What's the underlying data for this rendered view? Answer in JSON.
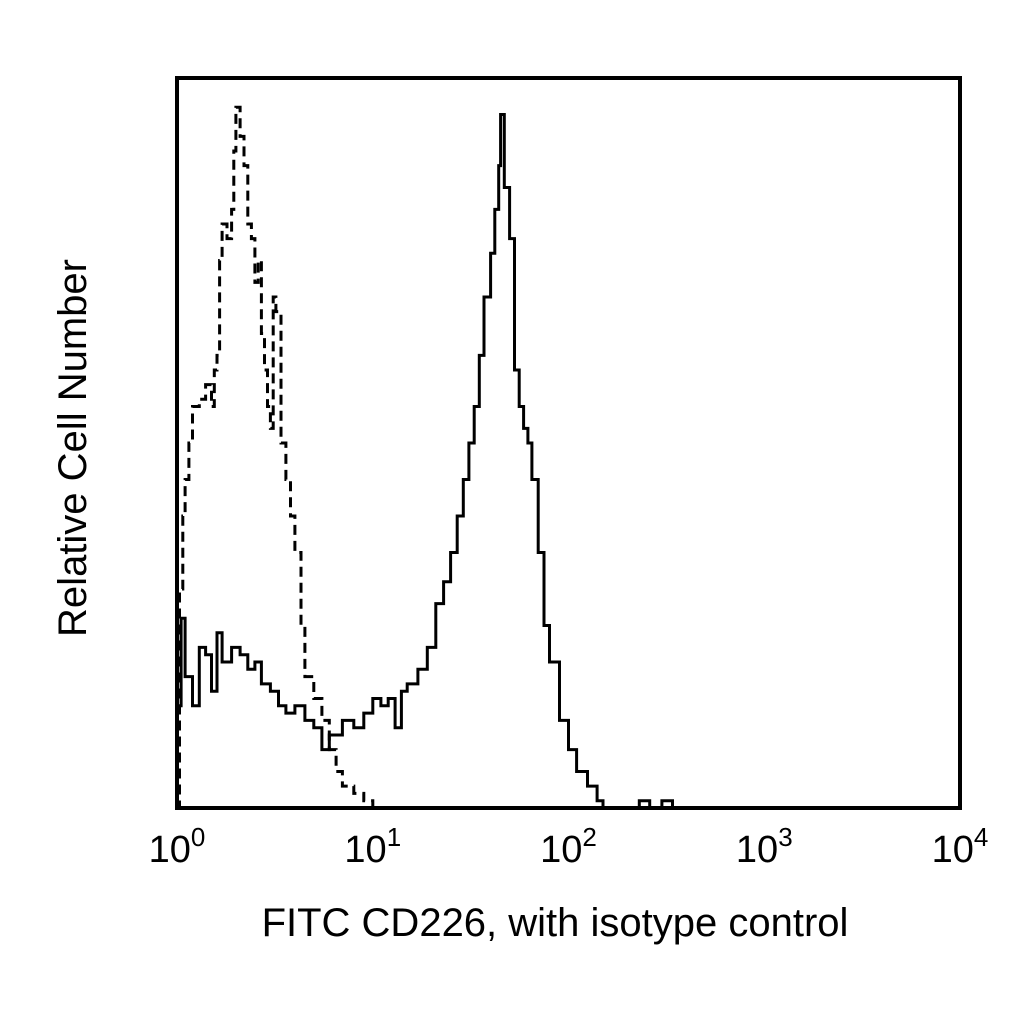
{
  "chart_data": {
    "type": "line",
    "xlabel": "FITC CD226, with isotype control",
    "ylabel": "Relative Cell Number",
    "x_scale": "log",
    "xlim": [
      1,
      10000
    ],
    "ylim": [
      0,
      100
    ],
    "y_tick_labels": false,
    "grid": false,
    "legend": "none",
    "x_ticks": [
      {
        "value": 1,
        "base": "10",
        "exp": "0"
      },
      {
        "value": 10,
        "base": "10",
        "exp": "1"
      },
      {
        "value": 100,
        "base": "10",
        "exp": "2"
      },
      {
        "value": 1000,
        "base": "10",
        "exp": "3"
      },
      {
        "value": 10000,
        "base": "10",
        "exp": "4"
      }
    ],
    "series": [
      {
        "style": "dashed",
        "color": "#000000",
        "points": [
          [
            1.0,
            0
          ],
          [
            1.03,
            30
          ],
          [
            1.07,
            40
          ],
          [
            1.1,
            45
          ],
          [
            1.15,
            50
          ],
          [
            1.2,
            55
          ],
          [
            1.3,
            56
          ],
          [
            1.4,
            58
          ],
          [
            1.5,
            55
          ],
          [
            1.55,
            60
          ],
          [
            1.6,
            62
          ],
          [
            1.65,
            75
          ],
          [
            1.7,
            80
          ],
          [
            1.8,
            78
          ],
          [
            1.9,
            82
          ],
          [
            1.95,
            90
          ],
          [
            2.0,
            96
          ],
          [
            2.1,
            92
          ],
          [
            2.2,
            88
          ],
          [
            2.3,
            80
          ],
          [
            2.4,
            78
          ],
          [
            2.5,
            72
          ],
          [
            2.6,
            75
          ],
          [
            2.7,
            65
          ],
          [
            2.8,
            60
          ],
          [
            2.9,
            55
          ],
          [
            3.0,
            52
          ],
          [
            3.1,
            70
          ],
          [
            3.2,
            68
          ],
          [
            3.4,
            50
          ],
          [
            3.6,
            45
          ],
          [
            3.8,
            40
          ],
          [
            4.0,
            35
          ],
          [
            4.3,
            25
          ],
          [
            4.5,
            18
          ],
          [
            5.0,
            15
          ],
          [
            5.5,
            12
          ],
          [
            6.0,
            8
          ],
          [
            6.5,
            5
          ],
          [
            7.0,
            3
          ],
          [
            8.0,
            2
          ],
          [
            9.0,
            1
          ],
          [
            10.0,
            0
          ],
          [
            20,
            0
          ],
          [
            100,
            0
          ],
          [
            10000,
            0
          ]
        ]
      },
      {
        "style": "solid",
        "color": "#000000",
        "points": [
          [
            1.0,
            14
          ],
          [
            1.05,
            26
          ],
          [
            1.1,
            18
          ],
          [
            1.2,
            14
          ],
          [
            1.3,
            22
          ],
          [
            1.4,
            21
          ],
          [
            1.5,
            16
          ],
          [
            1.6,
            24
          ],
          [
            1.7,
            20
          ],
          [
            1.9,
            22
          ],
          [
            2.1,
            21
          ],
          [
            2.3,
            19
          ],
          [
            2.5,
            20
          ],
          [
            2.7,
            17
          ],
          [
            3.0,
            16
          ],
          [
            3.3,
            14
          ],
          [
            3.6,
            13
          ],
          [
            4.0,
            14
          ],
          [
            4.5,
            12
          ],
          [
            5.0,
            11
          ],
          [
            5.5,
            8
          ],
          [
            6.0,
            10
          ],
          [
            7.0,
            12
          ],
          [
            8.0,
            11
          ],
          [
            9.0,
            13
          ],
          [
            10.0,
            15
          ],
          [
            11.0,
            14
          ],
          [
            12.0,
            15
          ],
          [
            13.0,
            11
          ],
          [
            14.0,
            16
          ],
          [
            15.0,
            17
          ],
          [
            17.0,
            19
          ],
          [
            19.0,
            22
          ],
          [
            21.0,
            28
          ],
          [
            23.0,
            31
          ],
          [
            25.0,
            35
          ],
          [
            27.0,
            40
          ],
          [
            29.0,
            45
          ],
          [
            31.0,
            50
          ],
          [
            33.0,
            55
          ],
          [
            35.0,
            62
          ],
          [
            37.0,
            70
          ],
          [
            40.0,
            76
          ],
          [
            42.0,
            82
          ],
          [
            44.0,
            88
          ],
          [
            45.0,
            95
          ],
          [
            47.0,
            85
          ],
          [
            50.0,
            78
          ],
          [
            53.0,
            60
          ],
          [
            56.0,
            55
          ],
          [
            59.0,
            52
          ],
          [
            62.0,
            50
          ],
          [
            65.0,
            45
          ],
          [
            70.0,
            35
          ],
          [
            75.0,
            25
          ],
          [
            80.0,
            20
          ],
          [
            90.0,
            12
          ],
          [
            100.0,
            8
          ],
          [
            110.0,
            5
          ],
          [
            125.0,
            3
          ],
          [
            140.0,
            1
          ],
          [
            150.0,
            0
          ],
          [
            200,
            0
          ],
          [
            230,
            1
          ],
          [
            260,
            0
          ],
          [
            300,
            1
          ],
          [
            340,
            0
          ],
          [
            10000,
            0
          ]
        ]
      }
    ]
  }
}
